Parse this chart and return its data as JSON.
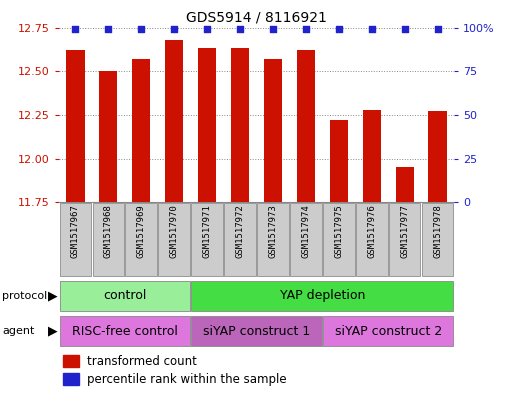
{
  "title": "GDS5914 / 8116921",
  "samples": [
    "GSM1517967",
    "GSM1517968",
    "GSM1517969",
    "GSM1517970",
    "GSM1517971",
    "GSM1517972",
    "GSM1517973",
    "GSM1517974",
    "GSM1517975",
    "GSM1517976",
    "GSM1517977",
    "GSM1517978"
  ],
  "transformed_count": [
    12.62,
    12.5,
    12.57,
    12.68,
    12.63,
    12.63,
    12.57,
    12.62,
    12.22,
    12.28,
    11.95,
    12.27
  ],
  "percentile": [
    99,
    99,
    99,
    99,
    99,
    99,
    99,
    99,
    99,
    99,
    99,
    99
  ],
  "ylim_left": [
    11.75,
    12.75
  ],
  "ylim_right": [
    0,
    100
  ],
  "yticks_left": [
    11.75,
    12.0,
    12.25,
    12.5,
    12.75
  ],
  "yticks_right": [
    0,
    25,
    50,
    75,
    100
  ],
  "bar_color": "#cc1100",
  "dot_color": "#2222cc",
  "grid_color": "#888888",
  "sample_box_color": "#cccccc",
  "sample_box_edge": "#999999",
  "protocol_colors": [
    "#99ee99",
    "#44dd44"
  ],
  "protocol_texts": [
    "control",
    "YAP depletion"
  ],
  "protocol_xranges": [
    [
      0,
      3
    ],
    [
      4,
      11
    ]
  ],
  "agent_colors": [
    "#dd77dd",
    "#bb66bb",
    "#dd77dd"
  ],
  "agent_texts": [
    "RISC-free control",
    "siYAP construct 1",
    "siYAP construct 2"
  ],
  "agent_xranges": [
    [
      0,
      3
    ],
    [
      4,
      7
    ],
    [
      8,
      11
    ]
  ],
  "legend_labels": [
    "transformed count",
    "percentile rank within the sample"
  ],
  "legend_colors": [
    "#cc1100",
    "#2222cc"
  ],
  "left_axis_color": "#cc1100",
  "right_axis_color": "#2222cc",
  "title_fontsize": 10,
  "bar_width": 0.55
}
